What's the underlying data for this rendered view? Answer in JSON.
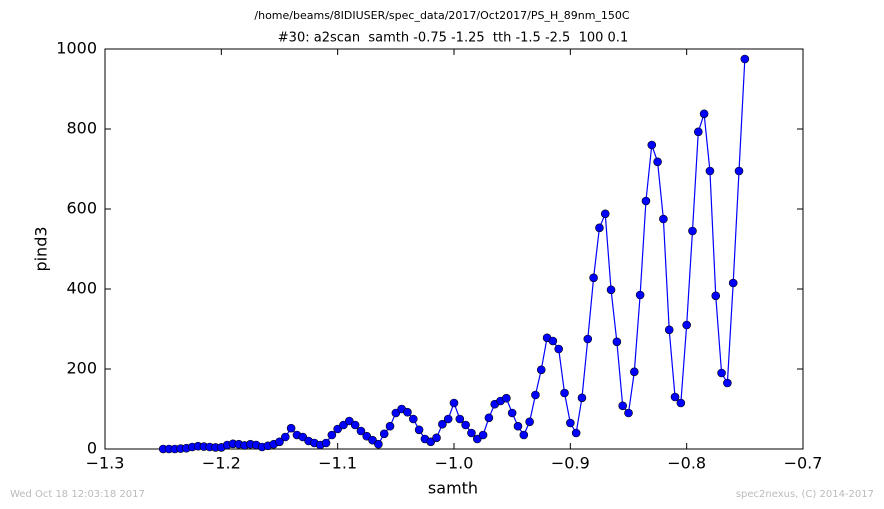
{
  "chart_data": {
    "type": "line",
    "title": "/home/beams/8IDIUSER/spec_data/2017/Oct2017/PS_H_89nm_150C",
    "subtitle": "#30: a2scan  samth -0.75 -1.25  tth -1.5 -2.5  100 0.1",
    "x_label": "samth",
    "y_label": "pind3",
    "footer_left": "Wed Oct 18 12:03:18 2017",
    "footer_right": "spec2nexus, (C) 2014-2017",
    "color": "#0000ff",
    "x": [
      -1.25,
      -1.245,
      -1.24,
      -1.235,
      -1.23,
      -1.225,
      -1.22,
      -1.215,
      -1.21,
      -1.205,
      -1.2,
      -1.195,
      -1.19,
      -1.185,
      -1.18,
      -1.175,
      -1.17,
      -1.165,
      -1.16,
      -1.155,
      -1.15,
      -1.145,
      -1.14,
      -1.135,
      -1.13,
      -1.125,
      -1.12,
      -1.115,
      -1.11,
      -1.105,
      -1.1,
      -1.095,
      -1.09,
      -1.085,
      -1.08,
      -1.075,
      -1.07,
      -1.065,
      -1.06,
      -1.055,
      -1.05,
      -1.045,
      -1.04,
      -1.035,
      -1.03,
      -1.025,
      -1.02,
      -1.015,
      -1.01,
      -1.005,
      -1.0,
      -0.995,
      -0.99,
      -0.985,
      -0.98,
      -0.975,
      -0.97,
      -0.965,
      -0.96,
      -0.955,
      -0.95,
      -0.945,
      -0.94,
      -0.935,
      -0.93,
      -0.925,
      -0.92,
      -0.915,
      -0.91,
      -0.905,
      -0.9,
      -0.895,
      -0.89,
      -0.885,
      -0.88,
      -0.875,
      -0.87,
      -0.865,
      -0.86,
      -0.855,
      -0.85,
      -0.845,
      -0.84,
      -0.835,
      -0.83,
      -0.825,
      -0.82,
      -0.815,
      -0.81,
      -0.805,
      -0.8,
      -0.795,
      -0.79,
      -0.785,
      -0.78,
      -0.775,
      -0.77,
      -0.765,
      -0.76,
      -0.755,
      -0.75
    ],
    "values": [
      0,
      0,
      0,
      1,
      2,
      5,
      7,
      6,
      5,
      4,
      4,
      10,
      13,
      12,
      9,
      12,
      10,
      5,
      8,
      12,
      18,
      30,
      52,
      35,
      30,
      20,
      15,
      10,
      15,
      35,
      50,
      60,
      70,
      60,
      45,
      32,
      22,
      12,
      38,
      57,
      90,
      100,
      92,
      75,
      48,
      25,
      18,
      28,
      62,
      75,
      115,
      75,
      60,
      40,
      25,
      35,
      78,
      112,
      120,
      127,
      90,
      57,
      35,
      68,
      135,
      198,
      278,
      270,
      250,
      140,
      65,
      40,
      128,
      275,
      428,
      553,
      588,
      398,
      268,
      108,
      90,
      193,
      385,
      620,
      760,
      718,
      575,
      298,
      130,
      115,
      310,
      545,
      793,
      838,
      695,
      383,
      190,
      165,
      415,
      695,
      975
    ],
    "xlim": [
      -1.3,
      -0.7
    ],
    "xticks": [
      {
        "value": -1.3,
        "label": "−1.3"
      },
      {
        "value": -1.2,
        "label": "−1.2"
      },
      {
        "value": -1.1,
        "label": "−1.1"
      },
      {
        "value": -1.0,
        "label": "−1.0"
      },
      {
        "value": -0.9,
        "label": "−0.9"
      },
      {
        "value": -0.8,
        "label": "−0.8"
      },
      {
        "value": -0.7,
        "label": "−0.7"
      }
    ],
    "ylim": [
      0,
      1000
    ],
    "yticks": [
      0,
      200,
      400,
      600,
      800,
      1000
    ],
    "grid": false
  }
}
